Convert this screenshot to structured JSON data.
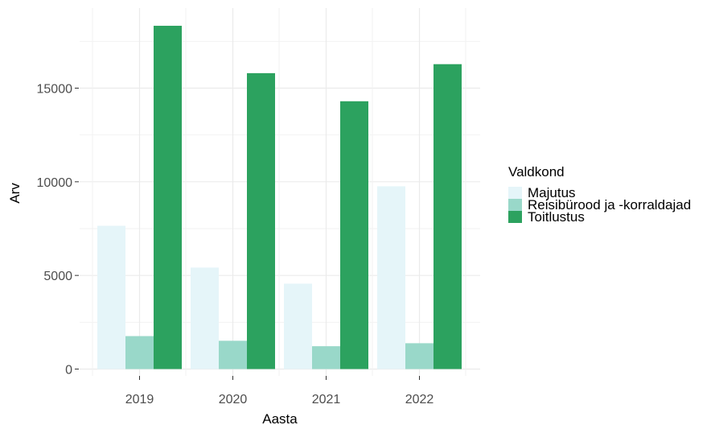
{
  "chart_data": {
    "type": "bar",
    "categories": [
      "2019",
      "2020",
      "2021",
      "2022"
    ],
    "series": [
      {
        "name": "Majutus",
        "values": [
          7650,
          5420,
          4560,
          9760
        ],
        "color": "#e5f5f9"
      },
      {
        "name": "Reisibürood ja -korraldajad",
        "values": [
          1760,
          1510,
          1220,
          1380
        ],
        "color": "#99d8c9"
      },
      {
        "name": "Toitlustus",
        "values": [
          18330,
          15800,
          14300,
          16280
        ],
        "color": "#2ca25f"
      }
    ],
    "xlabel": "Aasta",
    "ylabel": "Arv",
    "ylim": [
      0,
      18330
    ],
    "yticks": [
      0,
      5000,
      10000,
      15000
    ],
    "ytick_labels": [
      "0",
      "5000",
      "10000",
      "15000"
    ],
    "legend_title": "Valdkond",
    "legend_position": "right",
    "grid": true
  }
}
